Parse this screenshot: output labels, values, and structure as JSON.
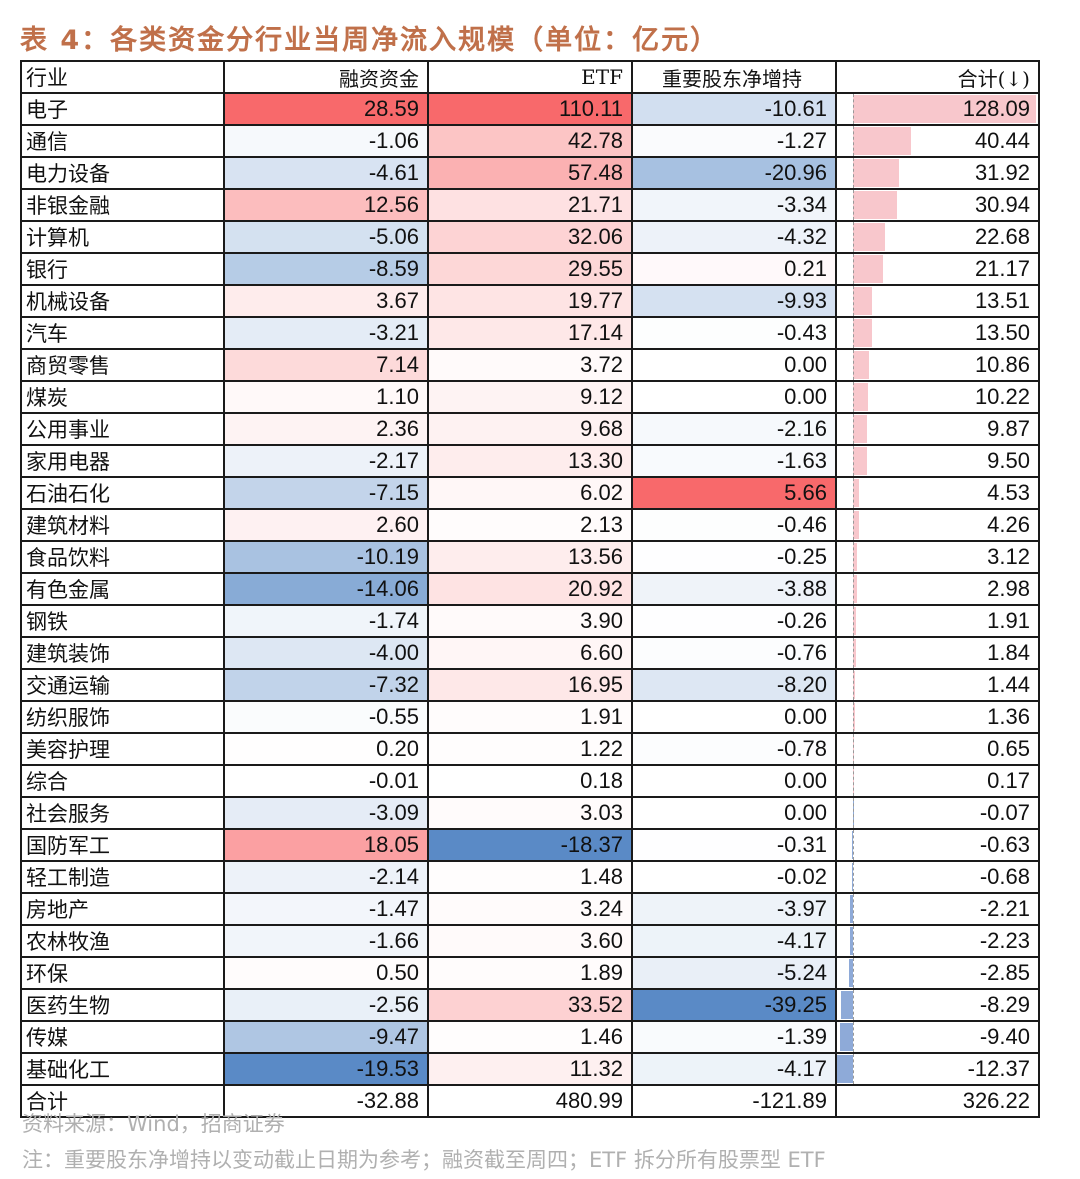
{
  "title": "表 4：各类资金分行业当周净流入规模（单位：亿元）",
  "columns": [
    "行业",
    "融资资金",
    "ETF",
    "重要股东净增持",
    "合计(↓)"
  ],
  "colors": {
    "positive_max": "#F8696B",
    "negative_max": "#5A8AC6",
    "neutral": "#FFFFFF",
    "bar_positive": "#F8C7CC",
    "bar_negative": "#8EAAD8",
    "title": "#C0704A"
  },
  "rows": [
    {
      "name": "电子",
      "margin": "28.59",
      "etf": "110.11",
      "holder": "-10.61",
      "total": "128.09"
    },
    {
      "name": "通信",
      "margin": "-1.06",
      "etf": "42.78",
      "holder": "-1.27",
      "total": "40.44"
    },
    {
      "name": "电力设备",
      "margin": "-4.61",
      "etf": "57.48",
      "holder": "-20.96",
      "total": "31.92"
    },
    {
      "name": "非银金融",
      "margin": "12.56",
      "etf": "21.71",
      "holder": "-3.34",
      "total": "30.94"
    },
    {
      "name": "计算机",
      "margin": "-5.06",
      "etf": "32.06",
      "holder": "-4.32",
      "total": "22.68"
    },
    {
      "name": "银行",
      "margin": "-8.59",
      "etf": "29.55",
      "holder": "0.21",
      "total": "21.17"
    },
    {
      "name": "机械设备",
      "margin": "3.67",
      "etf": "19.77",
      "holder": "-9.93",
      "total": "13.51"
    },
    {
      "name": "汽车",
      "margin": "-3.21",
      "etf": "17.14",
      "holder": "-0.43",
      "total": "13.50"
    },
    {
      "name": "商贸零售",
      "margin": "7.14",
      "etf": "3.72",
      "holder": "0.00",
      "total": "10.86"
    },
    {
      "name": "煤炭",
      "margin": "1.10",
      "etf": "9.12",
      "holder": "0.00",
      "total": "10.22"
    },
    {
      "name": "公用事业",
      "margin": "2.36",
      "etf": "9.68",
      "holder": "-2.16",
      "total": "9.87"
    },
    {
      "name": "家用电器",
      "margin": "-2.17",
      "etf": "13.30",
      "holder": "-1.63",
      "total": "9.50"
    },
    {
      "name": "石油石化",
      "margin": "-7.15",
      "etf": "6.02",
      "holder": "5.66",
      "total": "4.53"
    },
    {
      "name": "建筑材料",
      "margin": "2.60",
      "etf": "2.13",
      "holder": "-0.46",
      "total": "4.26"
    },
    {
      "name": "食品饮料",
      "margin": "-10.19",
      "etf": "13.56",
      "holder": "-0.25",
      "total": "3.12"
    },
    {
      "name": "有色金属",
      "margin": "-14.06",
      "etf": "20.92",
      "holder": "-3.88",
      "total": "2.98"
    },
    {
      "name": "钢铁",
      "margin": "-1.74",
      "etf": "3.90",
      "holder": "-0.26",
      "total": "1.91"
    },
    {
      "name": "建筑装饰",
      "margin": "-4.00",
      "etf": "6.60",
      "holder": "-0.76",
      "total": "1.84"
    },
    {
      "name": "交通运输",
      "margin": "-7.32",
      "etf": "16.95",
      "holder": "-8.20",
      "total": "1.44"
    },
    {
      "name": "纺织服饰",
      "margin": "-0.55",
      "etf": "1.91",
      "holder": "0.00",
      "total": "1.36"
    },
    {
      "name": "美容护理",
      "margin": "0.20",
      "etf": "1.22",
      "holder": "-0.78",
      "total": "0.65"
    },
    {
      "name": "综合",
      "margin": "-0.01",
      "etf": "0.18",
      "holder": "0.00",
      "total": "0.17"
    },
    {
      "name": "社会服务",
      "margin": "-3.09",
      "etf": "3.03",
      "holder": "0.00",
      "total": "-0.07"
    },
    {
      "name": "国防军工",
      "margin": "18.05",
      "etf": "-18.37",
      "holder": "-0.31",
      "total": "-0.63"
    },
    {
      "name": "轻工制造",
      "margin": "-2.14",
      "etf": "1.48",
      "holder": "-0.02",
      "total": "-0.68"
    },
    {
      "name": "房地产",
      "margin": "-1.47",
      "etf": "3.24",
      "holder": "-3.97",
      "total": "-2.21"
    },
    {
      "name": "农林牧渔",
      "margin": "-1.66",
      "etf": "3.60",
      "holder": "-4.17",
      "total": "-2.23"
    },
    {
      "name": "环保",
      "margin": "0.50",
      "etf": "1.89",
      "holder": "-5.24",
      "total": "-2.85"
    },
    {
      "name": "医药生物",
      "margin": "-2.56",
      "etf": "33.52",
      "holder": "-39.25",
      "total": "-8.29"
    },
    {
      "name": "传媒",
      "margin": "-9.47",
      "etf": "1.46",
      "holder": "-1.39",
      "total": "-9.40"
    },
    {
      "name": "基础化工",
      "margin": "-19.53",
      "etf": "11.32",
      "holder": "-4.17",
      "total": "-12.37"
    }
  ],
  "total_row": {
    "name": "合计",
    "margin": "-32.88",
    "etf": "480.99",
    "holder": "-121.89",
    "total": "326.22"
  },
  "source": "资料来源：Wind，招商证券",
  "note": "注：重要股东净增持以变动截止日期为参考；融资截至周四；ETF 拆分所有股票型 ETF"
}
